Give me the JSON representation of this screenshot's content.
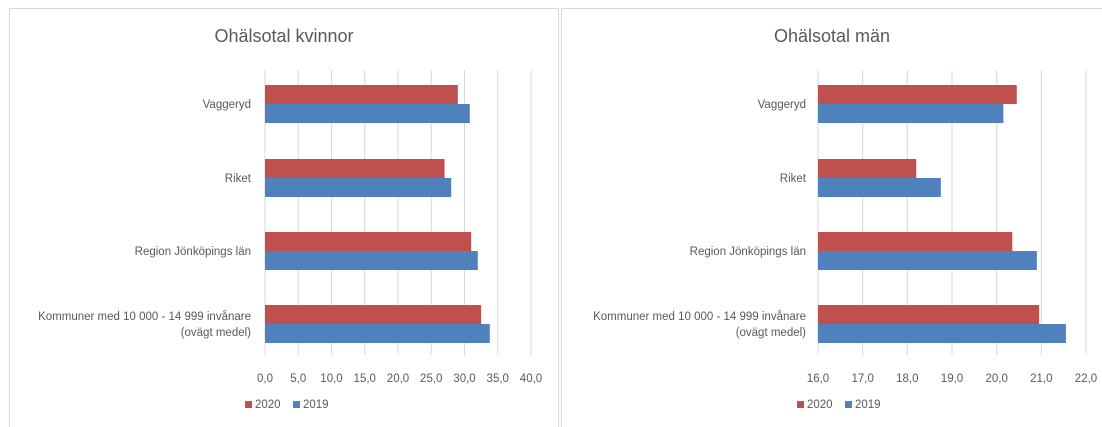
{
  "chart_data": [
    {
      "type": "bar",
      "orientation": "horizontal",
      "title": "Ohälsotal kvinnor",
      "categories": [
        "Vaggeryd",
        "Riket",
        "Region Jönköpings län",
        "Kommuner med 10 000 - 14 999 invånare (ovägt medel)"
      ],
      "series": [
        {
          "name": "2020",
          "color": "#c0504d",
          "values": [
            29.0,
            27.0,
            31.0,
            32.5
          ]
        },
        {
          "name": "2019",
          "color": "#4f81bd",
          "values": [
            30.8,
            28.0,
            32.0,
            33.8
          ]
        }
      ],
      "xlim": [
        0,
        40
      ],
      "ticks": [
        "0,0",
        "5,0",
        "10,0",
        "15,0",
        "20,0",
        "25,0",
        "30,0",
        "35,0",
        "40,0"
      ],
      "tick_values": [
        0,
        5,
        10,
        15,
        20,
        25,
        30,
        35,
        40
      ],
      "grid": true,
      "legend": "bottom-left"
    },
    {
      "type": "bar",
      "orientation": "horizontal",
      "title": "Ohälsotal män",
      "categories": [
        "Vaggeryd",
        "Riket",
        "Region Jönköpings län",
        "Kommuner med 10 000 - 14 999 invånare (ovägt medel)"
      ],
      "series": [
        {
          "name": "2020",
          "color": "#c0504d",
          "values": [
            20.45,
            18.2,
            20.35,
            20.95
          ]
        },
        {
          "name": "2019",
          "color": "#4f81bd",
          "values": [
            20.15,
            18.75,
            20.9,
            21.55
          ]
        }
      ],
      "xlim": [
        16,
        22
      ],
      "ticks": [
        "16,0",
        "17,0",
        "18,0",
        "19,0",
        "20,0",
        "21,0",
        "22,0"
      ],
      "tick_values": [
        16,
        17,
        18,
        19,
        20,
        21,
        22
      ],
      "grid": true,
      "legend": "bottom-left"
    }
  ]
}
